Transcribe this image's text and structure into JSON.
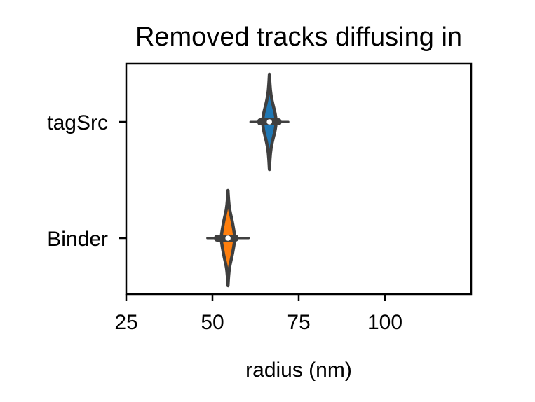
{
  "chart_data": {
    "type": "violin",
    "title": "Removed tracks diffusing in",
    "xlabel": "radius (nm)",
    "ylabel": "",
    "xlim": [
      25,
      125
    ],
    "xticks": [
      25,
      50,
      75,
      100
    ],
    "xtick_labels": [
      "25",
      "50",
      "75",
      "100"
    ],
    "categories": [
      "tagSrc",
      "Binder"
    ],
    "series": [
      {
        "name": "tagSrc",
        "color": "#1f77b4",
        "median": 66.5,
        "q1": 63,
        "q3": 70,
        "whisker_low": 61,
        "whisker_high": 72,
        "min": 66,
        "max": 67,
        "density": [
          [
            62,
            0.0
          ],
          [
            63,
            0.08
          ],
          [
            64,
            0.22
          ],
          [
            65,
            0.55
          ],
          [
            65.6,
            0.8
          ],
          [
            66.5,
            1.0
          ],
          [
            67.4,
            0.8
          ],
          [
            68,
            0.55
          ],
          [
            69,
            0.22
          ],
          [
            70,
            0.08
          ],
          [
            71,
            0.0
          ]
        ]
      },
      {
        "name": "Binder",
        "color": "#ff7f0e",
        "median": 54.5,
        "q1": 50.5,
        "q3": 57.5,
        "whisker_low": 48.5,
        "whisker_high": 60.5,
        "min": 54,
        "max": 55,
        "density": [
          [
            49.5,
            0.0
          ],
          [
            50.5,
            0.08
          ],
          [
            51.5,
            0.22
          ],
          [
            52.5,
            0.55
          ],
          [
            53.5,
            0.8
          ],
          [
            54.5,
            1.0
          ],
          [
            55.5,
            0.8
          ],
          [
            56.5,
            0.55
          ],
          [
            57.5,
            0.22
          ],
          [
            58.5,
            0.08
          ],
          [
            59.5,
            0.0
          ]
        ]
      }
    ],
    "grid": false,
    "legend": "none"
  }
}
